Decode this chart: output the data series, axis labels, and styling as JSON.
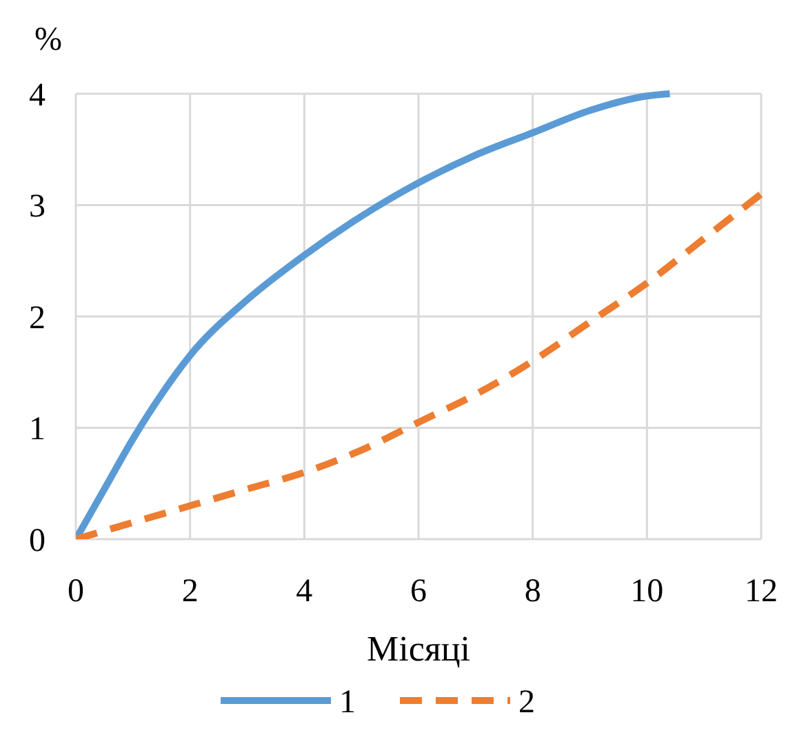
{
  "chart_data": {
    "type": "line",
    "xlabel": "Місяці",
    "ylabel": "%",
    "xlim": [
      0,
      12
    ],
    "ylim": [
      0,
      4
    ],
    "xticks": [
      0,
      2,
      4,
      6,
      8,
      10,
      12
    ],
    "yticks": [
      0,
      1,
      2,
      3,
      4
    ],
    "grid": true,
    "legend": "bottom",
    "marker": "none",
    "series": [
      {
        "name": "1",
        "color": "#5b9bd5",
        "line_style": "solid",
        "x": [
          0,
          0.5,
          1,
          1.5,
          2,
          3,
          4,
          5,
          6,
          7,
          8,
          9,
          10,
          10.4
        ],
        "values": [
          0,
          0.45,
          0.9,
          1.3,
          1.65,
          2.15,
          2.55,
          2.9,
          3.2,
          3.45,
          3.65,
          3.85,
          3.98,
          4
        ]
      },
      {
        "name": "2",
        "color": "#ed7d31",
        "line_style": "dashed",
        "x": [
          0,
          1,
          2,
          3,
          4,
          5,
          6,
          7,
          8,
          9,
          10,
          11,
          12
        ],
        "values": [
          0,
          0.15,
          0.3,
          0.45,
          0.6,
          0.8,
          1.05,
          1.3,
          1.6,
          1.95,
          2.3,
          2.7,
          3.1
        ]
      }
    ]
  }
}
